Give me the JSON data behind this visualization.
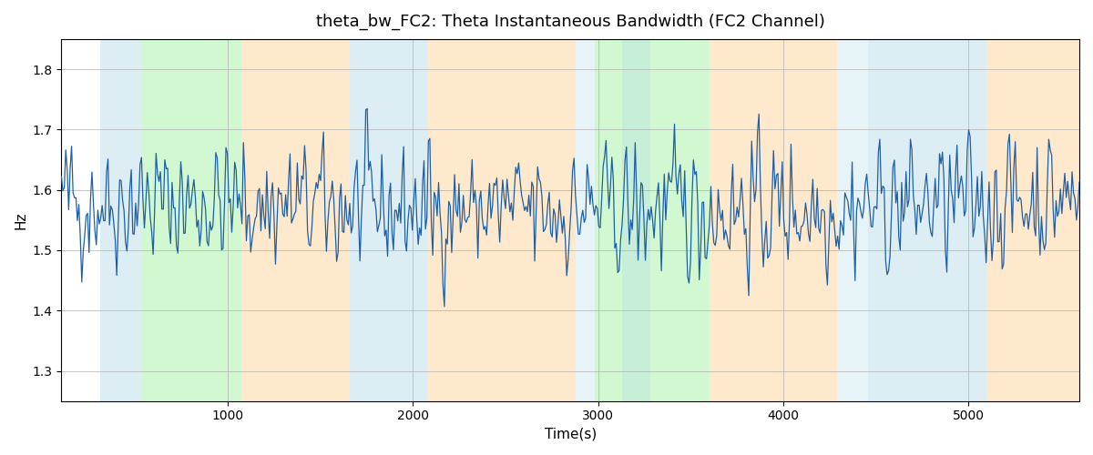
{
  "title": "theta_bw_FC2: Theta Instantaneous Bandwidth (FC2 Channel)",
  "xlabel": "Time(s)",
  "ylabel": "Hz",
  "xlim": [
    100,
    5600
  ],
  "ylim": [
    1.25,
    1.85
  ],
  "line_color": "#1f5fa6",
  "line_width": 0.9,
  "bg_color": "#ffffff",
  "grid_color": "#b0b0b0",
  "seed": 42,
  "n_points": 700,
  "x_start": 100,
  "x_end": 5600,
  "mean": 1.585,
  "std": 0.075,
  "bands": [
    {
      "xmin": 310,
      "xmax": 530,
      "color": "#add8e6",
      "alpha": 0.42
    },
    {
      "xmin": 530,
      "xmax": 1070,
      "color": "#90ee90",
      "alpha": 0.4
    },
    {
      "xmin": 1070,
      "xmax": 1660,
      "color": "#ffd59f",
      "alpha": 0.52
    },
    {
      "xmin": 1660,
      "xmax": 2080,
      "color": "#add8e6",
      "alpha": 0.42
    },
    {
      "xmin": 2080,
      "xmax": 2880,
      "color": "#ffd59f",
      "alpha": 0.52
    },
    {
      "xmin": 2880,
      "xmax": 2980,
      "color": "#add8e6",
      "alpha": 0.3
    },
    {
      "xmin": 2980,
      "xmax": 3600,
      "color": "#90ee90",
      "alpha": 0.4
    },
    {
      "xmin": 3130,
      "xmax": 3280,
      "color": "#add8e6",
      "alpha": 0.3
    },
    {
      "xmin": 3600,
      "xmax": 4290,
      "color": "#ffd59f",
      "alpha": 0.52
    },
    {
      "xmin": 4290,
      "xmax": 4460,
      "color": "#add8e6",
      "alpha": 0.3
    },
    {
      "xmin": 4460,
      "xmax": 5100,
      "color": "#add8e6",
      "alpha": 0.42
    },
    {
      "xmin": 5100,
      "xmax": 5700,
      "color": "#ffd59f",
      "alpha": 0.52
    }
  ]
}
